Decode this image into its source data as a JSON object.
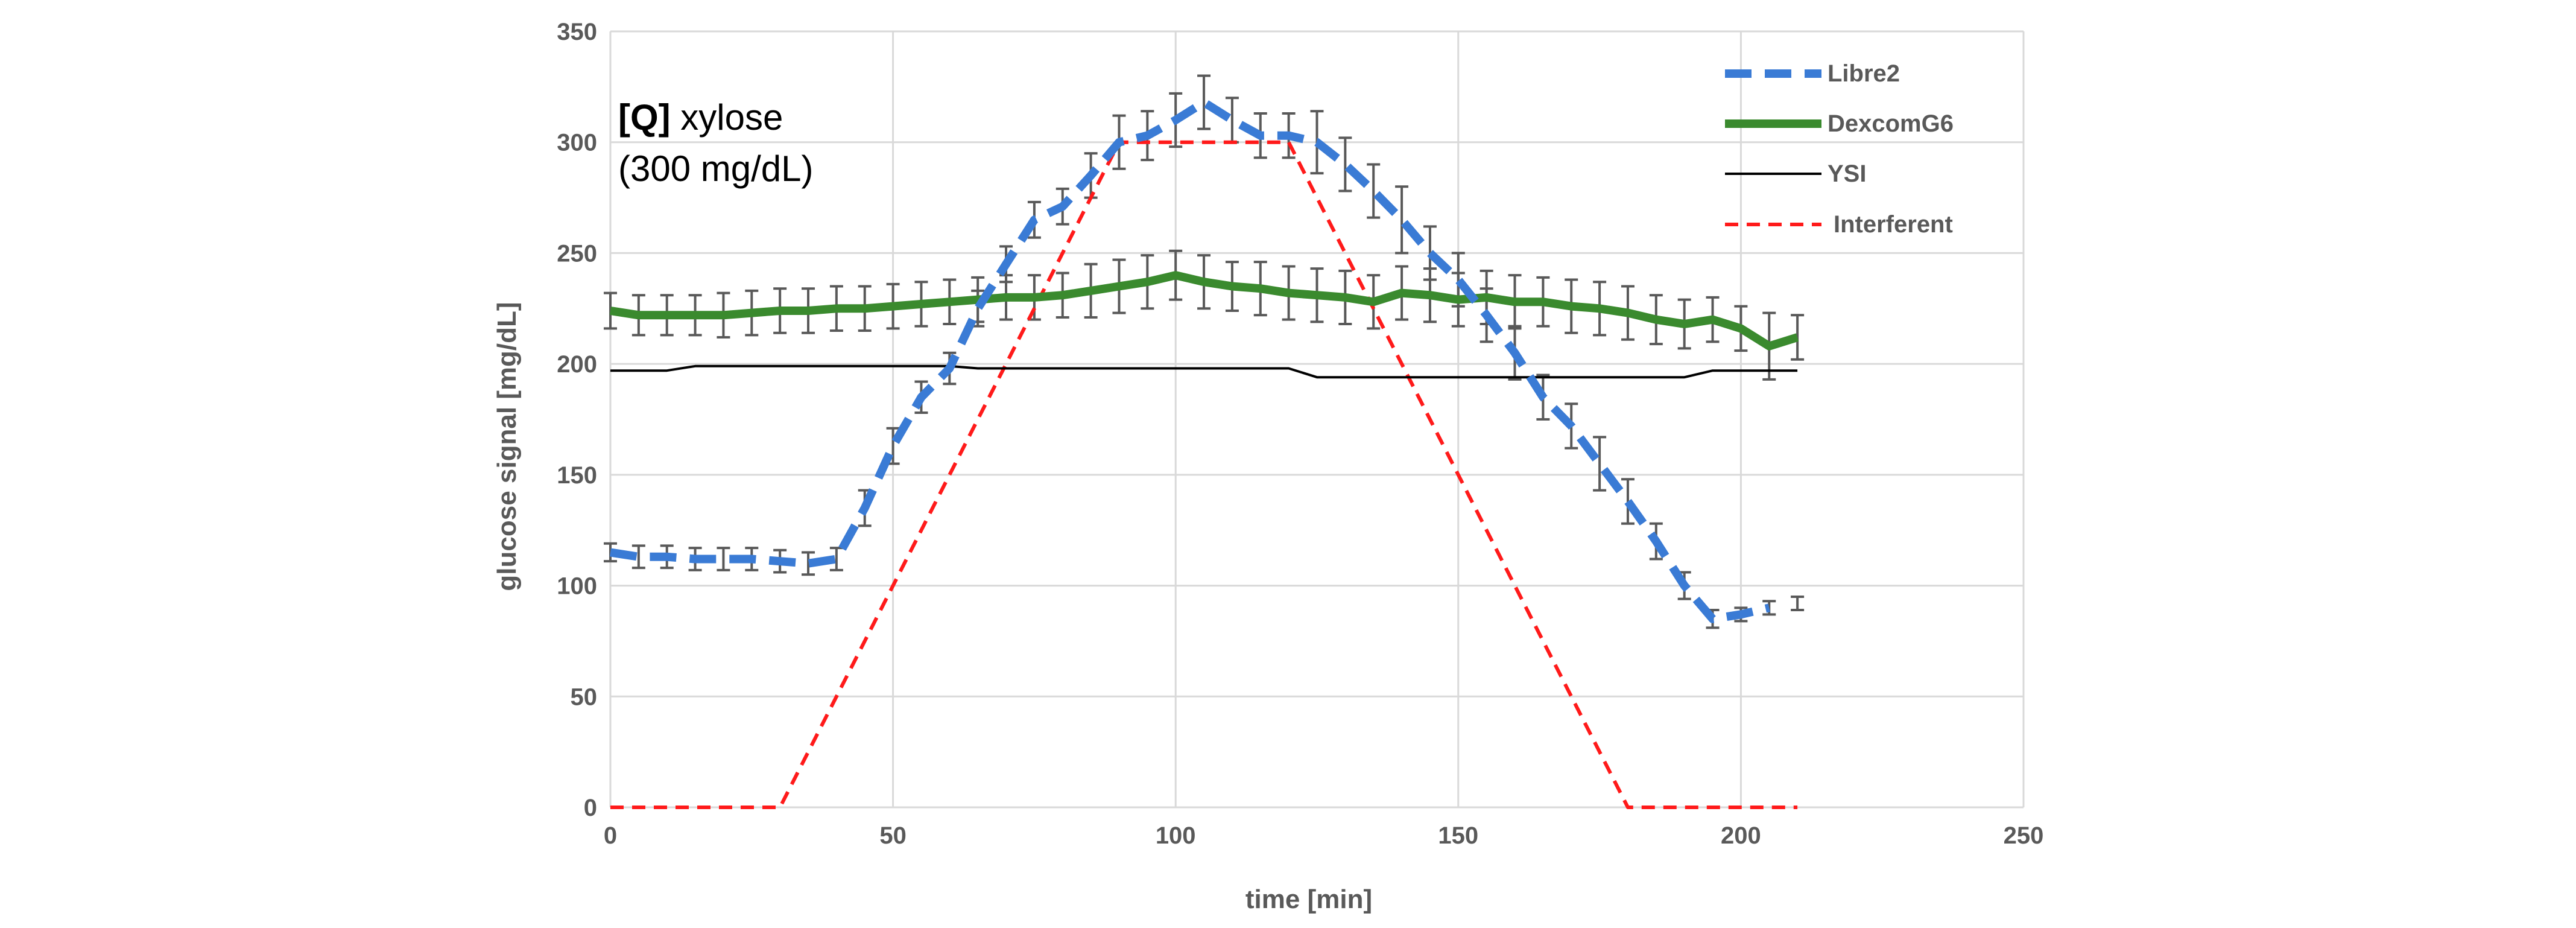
{
  "chart_data": {
    "type": "line",
    "title": "",
    "annotation": {
      "tag": "[Q]",
      "line1_rest": " xylose",
      "line2": "(300 mg/dL)"
    },
    "xlabel": "time [min]",
    "ylabel": "glucose signal [mg/dL]",
    "xlim": [
      0,
      250
    ],
    "ylim": [
      0,
      350
    ],
    "xticks": [
      0,
      50,
      100,
      150,
      200,
      250
    ],
    "yticks": [
      0,
      50,
      100,
      150,
      200,
      250,
      300,
      350
    ],
    "grid": true,
    "legend_position": "top-right",
    "colors": {
      "Libre2": "#3a7bd5",
      "DexcomG6": "#3a8a2e",
      "YSI": "#000000",
      "Interferent": "#ff1a1a",
      "errorbar": "#595959",
      "grid": "#d9d9d9"
    },
    "series": [
      {
        "name": "Libre2",
        "style": "dashed",
        "points": [
          [
            0,
            115,
            4
          ],
          [
            5,
            113,
            5
          ],
          [
            10,
            113,
            5
          ],
          [
            15,
            112,
            5
          ],
          [
            20,
            112,
            5
          ],
          [
            25,
            112,
            5
          ],
          [
            30,
            111,
            5
          ],
          [
            35,
            110,
            5
          ],
          [
            40,
            112,
            5
          ],
          [
            45,
            135,
            8
          ],
          [
            50,
            163,
            8
          ],
          [
            55,
            185,
            7
          ],
          [
            60,
            198,
            7
          ],
          [
            65,
            225,
            8
          ],
          [
            70,
            245,
            8
          ],
          [
            75,
            265,
            8
          ],
          [
            80,
            271,
            8
          ],
          [
            85,
            285,
            10
          ],
          [
            90,
            300,
            12
          ],
          [
            95,
            303,
            11
          ],
          [
            100,
            310,
            12
          ],
          [
            105,
            318,
            12
          ],
          [
            110,
            310,
            10
          ],
          [
            115,
            303,
            10
          ],
          [
            120,
            303,
            10
          ],
          [
            125,
            300,
            14
          ],
          [
            130,
            290,
            12
          ],
          [
            135,
            278,
            12
          ],
          [
            140,
            265,
            15
          ],
          [
            145,
            250,
            12
          ],
          [
            150,
            238,
            12
          ],
          [
            155,
            222,
            12
          ],
          [
            160,
            205,
            12
          ],
          [
            165,
            185,
            10
          ],
          [
            170,
            172,
            10
          ],
          [
            175,
            155,
            12
          ],
          [
            180,
            138,
            10
          ],
          [
            185,
            120,
            8
          ],
          [
            190,
            100,
            6
          ],
          [
            195,
            85,
            4
          ],
          [
            200,
            87,
            3
          ],
          [
            205,
            90,
            3
          ]
        ],
        "extra_errorbars": [
          [
            210,
            92,
            3
          ]
        ]
      },
      {
        "name": "DexcomG6",
        "style": "solid",
        "points": [
          [
            0,
            224,
            8
          ],
          [
            5,
            222,
            9
          ],
          [
            10,
            222,
            9
          ],
          [
            15,
            222,
            9
          ],
          [
            20,
            222,
            10
          ],
          [
            25,
            223,
            10
          ],
          [
            30,
            224,
            10
          ],
          [
            35,
            224,
            10
          ],
          [
            40,
            225,
            10
          ],
          [
            45,
            225,
            10
          ],
          [
            50,
            226,
            10
          ],
          [
            55,
            227,
            10
          ],
          [
            60,
            228,
            10
          ],
          [
            65,
            229,
            10
          ],
          [
            70,
            230,
            10
          ],
          [
            75,
            230,
            10
          ],
          [
            80,
            231,
            10
          ],
          [
            85,
            233,
            12
          ],
          [
            90,
            235,
            12
          ],
          [
            95,
            237,
            12
          ],
          [
            100,
            240,
            11
          ],
          [
            105,
            237,
            12
          ],
          [
            110,
            235,
            11
          ],
          [
            115,
            234,
            12
          ],
          [
            120,
            232,
            12
          ],
          [
            125,
            231,
            12
          ],
          [
            130,
            230,
            12
          ],
          [
            135,
            228,
            12
          ],
          [
            140,
            232,
            12
          ],
          [
            145,
            231,
            12
          ],
          [
            150,
            229,
            12
          ],
          [
            155,
            230,
            12
          ],
          [
            160,
            228,
            12
          ],
          [
            165,
            228,
            11
          ],
          [
            170,
            226,
            12
          ],
          [
            175,
            225,
            12
          ],
          [
            180,
            223,
            12
          ],
          [
            185,
            220,
            11
          ],
          [
            190,
            218,
            11
          ],
          [
            195,
            220,
            10
          ],
          [
            200,
            216,
            10
          ],
          [
            205,
            208,
            15
          ],
          [
            210,
            212,
            10
          ]
        ]
      },
      {
        "name": "YSI",
        "style": "solid-thin",
        "points": [
          [
            0,
            197
          ],
          [
            10,
            197
          ],
          [
            15,
            199
          ],
          [
            60,
            199
          ],
          [
            65,
            198
          ],
          [
            120,
            198
          ],
          [
            125,
            194
          ],
          [
            190,
            194
          ],
          [
            195,
            197
          ],
          [
            210,
            197
          ]
        ]
      },
      {
        "name": "Interferent",
        "style": "dashed-thin",
        "points": [
          [
            0,
            0
          ],
          [
            30,
            0
          ],
          [
            90,
            300
          ],
          [
            120,
            300
          ],
          [
            180,
            0
          ],
          [
            210,
            0
          ]
        ]
      }
    ]
  }
}
